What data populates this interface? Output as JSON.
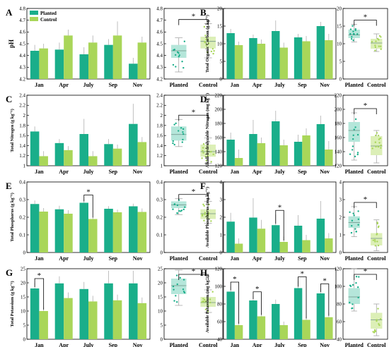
{
  "colors": {
    "planted": "#1aae8a",
    "control": "#a9d659",
    "box_planted": "#b5e6da",
    "box_control": "#dcefb7",
    "axis": "#000000",
    "error": "#b0b0b0"
  },
  "chart_data": [
    {
      "type": "bar",
      "panel": "A",
      "ylabel": "pH",
      "categories": [
        "Jan",
        "Apr",
        "July",
        "Sep",
        "Nov"
      ],
      "ylim": [
        4.2,
        4.8
      ],
      "yticks": [
        4.2,
        4.3,
        4.4,
        4.5,
        4.6,
        4.7,
        4.8
      ],
      "series": [
        {
          "name": "Planted",
          "values": [
            4.44,
            4.45,
            4.41,
            4.49,
            4.33
          ],
          "err": [
            0.05,
            0.06,
            0.06,
            0.05,
            0.05
          ]
        },
        {
          "name": "Control",
          "values": [
            4.46,
            4.57,
            4.51,
            4.57,
            4.51
          ],
          "err": [
            0.04,
            0.05,
            0.06,
            0.12,
            0.05
          ]
        }
      ],
      "sig": [],
      "box": {
        "categories": [
          "Planted",
          "Control"
        ],
        "ylim": [
          4.2,
          4.8
        ],
        "yticks": [
          4.2,
          4.3,
          4.4,
          4.5,
          4.6,
          4.7,
          4.8
        ],
        "sig_label": "*",
        "groups": [
          {
            "name": "Planted",
            "q1": 4.38,
            "median": 4.44,
            "q3": 4.49,
            "whisker_low": 4.26,
            "whisker_high": 4.55,
            "mean": 4.42
          },
          {
            "name": "Control",
            "q1": 4.46,
            "median": 4.52,
            "q3": 4.56,
            "whisker_low": 4.38,
            "whisker_high": 4.67,
            "mean": 4.51
          }
        ]
      }
    },
    {
      "type": "bar",
      "panel": "B",
      "ylabel": "Total Organic Carbon (g kg⁻¹)",
      "categories": [
        "Jan",
        "Apr",
        "July",
        "Sep",
        "Nov"
      ],
      "ylim": [
        0,
        20
      ],
      "yticks": [
        0,
        5,
        10,
        15,
        20
      ],
      "series": [
        {
          "name": "Planted",
          "values": [
            13.0,
            11.6,
            13.6,
            11.8,
            15.0
          ],
          "err": [
            1.2,
            1.0,
            3.0,
            1.0,
            1.2
          ]
        },
        {
          "name": "Control",
          "values": [
            9.6,
            10.0,
            8.9,
            10.7,
            11.0
          ],
          "err": [
            1.0,
            1.2,
            1.4,
            1.5,
            1.8
          ]
        }
      ],
      "sig": [],
      "box": {
        "categories": [
          "Planted",
          "Control"
        ],
        "ylim": [
          0,
          20
        ],
        "yticks": [
          0,
          5,
          10,
          15,
          20
        ],
        "sig_label": "*",
        "groups": [
          {
            "name": "Planted",
            "q1": 11.6,
            "median": 12.5,
            "q3": 14.0,
            "whisker_low": 10.5,
            "whisker_high": 15.5,
            "mean": 13.1
          },
          {
            "name": "Control",
            "q1": 8.6,
            "median": 10.2,
            "q3": 11.4,
            "whisker_low": 7.8,
            "whisker_high": 12.8,
            "mean": 10.0
          }
        ]
      }
    },
    {
      "type": "bar",
      "panel": "C",
      "ylabel": "Total Nitrogen (g kg⁻¹)",
      "categories": [
        "Jan",
        "Apr",
        "July",
        "Sep",
        "Nov"
      ],
      "ylim": [
        1.0,
        2.4
      ],
      "yticks": [
        1.0,
        1.2,
        1.4,
        1.6,
        1.8,
        2.0,
        2.2,
        2.4
      ],
      "series": [
        {
          "name": "Planted",
          "values": [
            1.68,
            1.45,
            1.63,
            1.43,
            1.83
          ],
          "err": [
            0.1,
            0.08,
            0.3,
            0.1,
            0.4
          ]
        },
        {
          "name": "Control",
          "values": [
            1.19,
            1.31,
            1.19,
            1.34,
            1.47
          ],
          "err": [
            0.1,
            0.08,
            0.1,
            0.08,
            0.1
          ]
        }
      ],
      "sig": [],
      "box": {
        "categories": [
          "Planted",
          "Control"
        ],
        "ylim": [
          1.0,
          2.4
        ],
        "yticks": [
          1.0,
          1.2,
          1.4,
          1.6,
          1.8,
          2.0,
          2.2,
          2.4
        ],
        "sig_label": "*",
        "groups": [
          {
            "name": "Planted",
            "q1": 1.5,
            "median": 1.62,
            "q3": 1.78,
            "whisker_low": 1.38,
            "whisker_high": 1.92,
            "mean": 1.65
          },
          {
            "name": "Control",
            "q1": 1.18,
            "median": 1.28,
            "q3": 1.42,
            "whisker_low": 1.05,
            "whisker_high": 1.55,
            "mean": 1.3
          }
        ]
      }
    },
    {
      "type": "bar",
      "panel": "D",
      "ylabel": "Alkali-hydrolyzable Nitrogen (mg kg⁻¹)",
      "categories": [
        "Jan",
        "Apr",
        "July",
        "Sep",
        "Nov"
      ],
      "ylim": [
        120,
        220
      ],
      "yticks": [
        120,
        140,
        160,
        180,
        200,
        220
      ],
      "series": [
        {
          "name": "Planted",
          "values": [
            157,
            165,
            183,
            154,
            179
          ],
          "err": [
            10,
            20,
            15,
            10,
            12
          ]
        },
        {
          "name": "Control",
          "values": [
            131,
            152,
            149,
            163,
            143
          ],
          "err": [
            12,
            8,
            8,
            10,
            12
          ]
        }
      ],
      "sig": [],
      "box": {
        "categories": [
          "Planted",
          "Control"
        ],
        "ylim": [
          120,
          220
        ],
        "yticks": [
          120,
          140,
          160,
          180,
          200,
          220
        ],
        "sig_label": "*",
        "groups": [
          {
            "name": "Planted",
            "q1": 154,
            "median": 170,
            "q3": 182,
            "whisker_low": 128,
            "whisker_high": 195,
            "mean": 167
          },
          {
            "name": "Control",
            "q1": 135,
            "median": 148,
            "q3": 162,
            "whisker_low": 124,
            "whisker_high": 170,
            "mean": 147
          }
        ]
      }
    },
    {
      "type": "bar",
      "panel": "E",
      "ylabel": "Total Phosphorus (g kg⁻¹)",
      "categories": [
        "Jan",
        "Apr",
        "July",
        "Sep",
        "Nov"
      ],
      "ylim": [
        0,
        0.4
      ],
      "yticks": [
        0,
        0.1,
        0.2,
        0.3,
        0.4
      ],
      "series": [
        {
          "name": "Planted",
          "values": [
            0.275,
            0.245,
            0.282,
            0.248,
            0.262
          ],
          "err": [
            0.02,
            0.02,
            0.02,
            0.015,
            0.015
          ]
        },
        {
          "name": "Control",
          "values": [
            0.232,
            0.22,
            0.19,
            0.228,
            0.23
          ],
          "err": [
            0.02,
            0.02,
            0.01,
            0.015,
            0.02
          ]
        }
      ],
      "sig": [
        {
          "category": "July",
          "label": "*"
        }
      ],
      "box": {
        "categories": [
          "Planted",
          "Control"
        ],
        "ylim": [
          0,
          0.4
        ],
        "yticks": [
          0,
          0.1,
          0.2,
          0.3,
          0.4
        ],
        "sig_label": "*",
        "groups": [
          {
            "name": "Planted",
            "q1": 0.252,
            "median": 0.27,
            "q3": 0.29,
            "whisker_low": 0.215,
            "whisker_high": 0.305,
            "mean": 0.268
          },
          {
            "name": "Control",
            "q1": 0.19,
            "median": 0.22,
            "q3": 0.245,
            "whisker_low": 0.165,
            "whisker_high": 0.29,
            "mean": 0.22
          }
        ]
      }
    },
    {
      "type": "bar",
      "panel": "F",
      "ylabel": "Available Phosphorus (mg kg⁻¹)",
      "categories": [
        "Jan",
        "Apr",
        "July",
        "Sep",
        "Nov"
      ],
      "ylim": [
        0,
        4
      ],
      "yticks": [
        0,
        1,
        2,
        3,
        4
      ],
      "series": [
        {
          "name": "Planted",
          "values": [
            1.75,
            1.98,
            1.55,
            1.52,
            1.92
          ],
          "err": [
            0.5,
            1.1,
            0.6,
            0.6,
            1.0
          ]
        },
        {
          "name": "Control",
          "values": [
            0.5,
            1.35,
            0.6,
            0.7,
            0.8
          ],
          "err": [
            0.3,
            0.5,
            0.3,
            0.3,
            0.3
          ]
        }
      ],
      "sig": [
        {
          "category": "July",
          "label": "*"
        }
      ],
      "box": {
        "categories": [
          "Planted",
          "Control"
        ],
        "ylim": [
          0,
          4
        ],
        "yticks": [
          0,
          1,
          2,
          3,
          4
        ],
        "sig_label": "*",
        "groups": [
          {
            "name": "Planted",
            "q1": 1.4,
            "median": 1.7,
            "q3": 2.05,
            "whisker_low": 0.9,
            "whisker_high": 2.6,
            "mean": 1.75
          },
          {
            "name": "Control",
            "q1": 0.4,
            "median": 0.8,
            "q3": 1.1,
            "whisker_low": 0.1,
            "whisker_high": 1.85,
            "mean": 0.8
          }
        ]
      }
    },
    {
      "type": "bar",
      "panel": "G",
      "ylabel": "Total Potassium (g kg⁻¹)",
      "categories": [
        "Jan",
        "Apr",
        "July",
        "Sep",
        "Nov"
      ],
      "ylim": [
        0,
        25
      ],
      "yticks": [
        0,
        5,
        10,
        15,
        20,
        25
      ],
      "series": [
        {
          "name": "Planted",
          "values": [
            18.0,
            19.8,
            17.8,
            19.8,
            19.8
          ],
          "err": [
            2.0,
            2.5,
            2.5,
            4.5,
            4.5
          ]
        },
        {
          "name": "Control",
          "values": [
            10.0,
            14.6,
            13.4,
            13.8,
            12.8
          ],
          "err": [
            1.5,
            2.0,
            2.0,
            2.0,
            2.0
          ]
        }
      ],
      "sig": [
        {
          "category": "Jan",
          "label": "*"
        }
      ],
      "box": {
        "categories": [
          "Planted",
          "Control"
        ],
        "ylim": [
          0,
          25
        ],
        "yticks": [
          0,
          5,
          10,
          15,
          20,
          25
        ],
        "sig_label": "*",
        "groups": [
          {
            "name": "Planted",
            "q1": 16.0,
            "median": 19.0,
            "q3": 21.5,
            "whisker_low": 12.0,
            "whisker_high": 24.5,
            "mean": 18.5
          },
          {
            "name": "Control",
            "q1": 11.5,
            "median": 13.0,
            "q3": 15.0,
            "whisker_low": 9.5,
            "whisker_high": 17.5,
            "mean": 13.2
          }
        ]
      }
    },
    {
      "type": "bar",
      "panel": "H",
      "ylabel": "Available Potassium (mg kg⁻¹)",
      "categories": [
        "Jan",
        "Apr",
        "July",
        "Sep",
        "Nov"
      ],
      "ylim": [
        40,
        120
      ],
      "yticks": [
        40,
        60,
        80,
        100,
        120
      ],
      "series": [
        {
          "name": "Planted",
          "values": [
            94,
            84,
            80,
            98,
            92
          ],
          "err": [
            6,
            5,
            5,
            8,
            6
          ]
        },
        {
          "name": "Control",
          "values": [
            56,
            66,
            56,
            62,
            65
          ],
          "err": [
            4,
            4,
            4,
            4,
            5
          ]
        }
      ],
      "sig": [
        {
          "category": "Jan",
          "label": "*"
        },
        {
          "category": "Apr",
          "label": "*"
        },
        {
          "category": "Sep",
          "label": "*"
        },
        {
          "category": "Nov",
          "label": "*"
        }
      ],
      "box": {
        "categories": [
          "Planted",
          "Control"
        ],
        "ylim": [
          40,
          120
        ],
        "yticks": [
          40,
          60,
          80,
          100,
          120
        ],
        "sig_label": "*",
        "groups": [
          {
            "name": "Planted",
            "q1": 80,
            "median": 88,
            "q3": 98,
            "whisker_low": 72,
            "whisker_high": 120,
            "mean": 89
          },
          {
            "name": "Control",
            "q1": 52,
            "median": 62,
            "q3": 70,
            "whisker_low": 44,
            "whisker_high": 80,
            "mean": 61
          }
        ]
      }
    }
  ],
  "legend": {
    "items": [
      "Planted",
      "Control"
    ]
  }
}
